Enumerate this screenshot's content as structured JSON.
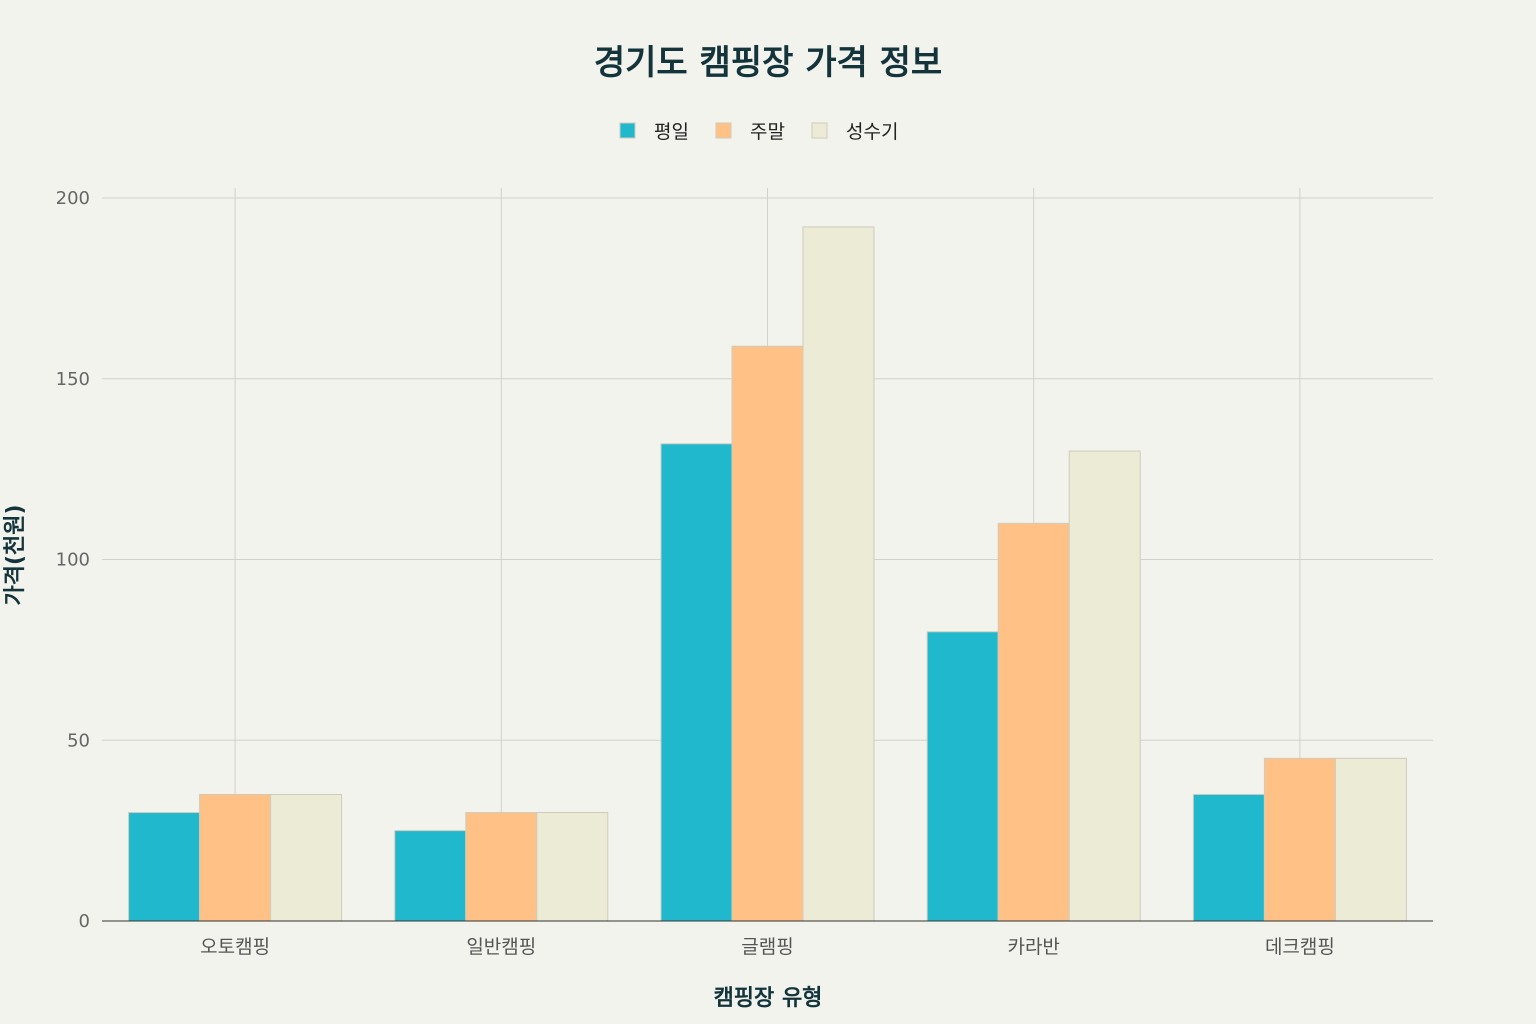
{
  "chart_data": {
    "type": "bar",
    "title": "경기도 캠핑장 가격 정보",
    "xlabel": "캠핑장 유형",
    "ylabel": "가격(천원)",
    "categories": [
      "오토캠핑",
      "일반캠핑",
      "글램핑",
      "카라반",
      "데크캠핑"
    ],
    "series": [
      {
        "name": "평일",
        "color": "#1FB8CD",
        "values": [
          30,
          25,
          132,
          80,
          35
        ]
      },
      {
        "name": "주말",
        "color": "#FFC185",
        "values": [
          35,
          30,
          159,
          110,
          45
        ]
      },
      {
        "name": "성수기",
        "color": "#ECEBD5",
        "values": [
          35,
          30,
          192,
          130,
          45
        ]
      }
    ],
    "ylim": [
      0,
      200
    ],
    "yticks": [
      0,
      50,
      100,
      150,
      200
    ],
    "grid": true,
    "legend_position": "top-center"
  }
}
